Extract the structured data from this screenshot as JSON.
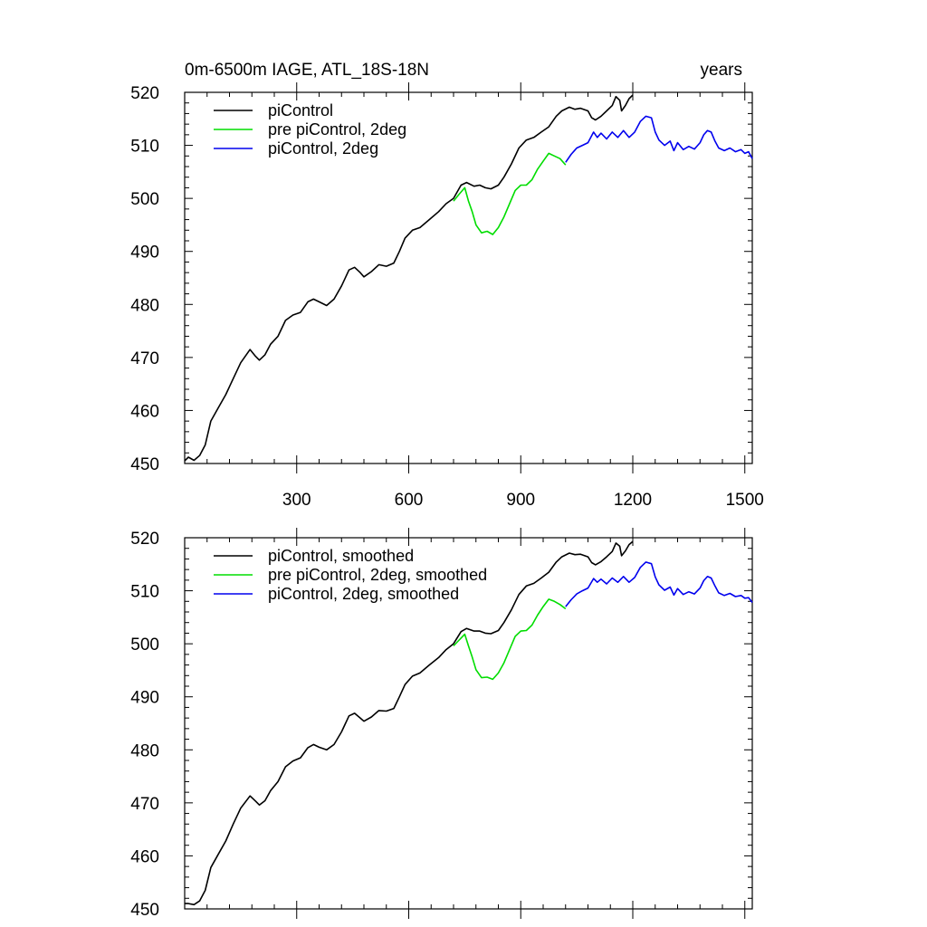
{
  "chart_data": [
    {
      "type": "line",
      "title": "0m-6500m IAGE, ATL_18S-18N",
      "units": "years",
      "xlim": [
        0,
        1520
      ],
      "ylim": [
        450,
        520
      ],
      "xticks": [
        300,
        600,
        900,
        1200,
        1500
      ],
      "xtick_labels": [
        "300",
        "600",
        "900",
        "1200",
        "1500"
      ],
      "yticks": [
        450,
        460,
        470,
        480,
        490,
        500,
        510,
        520
      ],
      "ytick_labels": [
        "450",
        "460",
        "470",
        "480",
        "490",
        "500",
        "510",
        "520"
      ],
      "legend_position": "top-left",
      "series": [
        {
          "name": "piControl",
          "color": "#000000",
          "x": [
            0,
            10,
            25,
            40,
            55,
            70,
            90,
            110,
            130,
            150,
            175,
            190,
            200,
            215,
            230,
            250,
            270,
            290,
            310,
            330,
            345,
            360,
            380,
            400,
            420,
            440,
            455,
            470,
            480,
            500,
            520,
            540,
            560,
            575,
            590,
            610,
            630,
            655,
            680,
            700,
            720,
            740,
            755,
            775,
            790,
            805,
            820,
            840,
            855,
            875,
            895,
            915,
            935,
            955,
            975,
            995,
            1010,
            1030,
            1045,
            1060,
            1080,
            1090,
            1100,
            1115,
            1130,
            1145,
            1155,
            1165,
            1170,
            1180,
            1190,
            1200
          ],
          "y": [
            450.5,
            451.2,
            450.6,
            451.5,
            453.5,
            458,
            460.5,
            463,
            466,
            469,
            471.5,
            470.2,
            469.5,
            470.5,
            472.5,
            474,
            477,
            478,
            478.5,
            480.5,
            481,
            480.5,
            479.8,
            481,
            483.5,
            486.5,
            487,
            486,
            485.2,
            486.2,
            487.5,
            487.2,
            487.8,
            490,
            492.5,
            494,
            494.5,
            496,
            497.5,
            499,
            500,
            502.5,
            503,
            502.3,
            502.5,
            502,
            501.8,
            502.5,
            504,
            506.5,
            509.5,
            511,
            511.5,
            512.5,
            513.5,
            515.5,
            516.5,
            517.2,
            516.8,
            517,
            516.5,
            515.2,
            514.8,
            515.5,
            516.5,
            517.5,
            519.2,
            518.5,
            516.5,
            517.5,
            518.8,
            519.5
          ]
        },
        {
          "name": "pre piControl, 2deg",
          "color": "#00dd00",
          "x": [
            720,
            735,
            750,
            760,
            770,
            780,
            795,
            810,
            825,
            840,
            855,
            870,
            885,
            900,
            915,
            930,
            945,
            960,
            975,
            990,
            1005,
            1020
          ],
          "y": [
            499.5,
            500.8,
            502,
            499.5,
            497.5,
            495,
            493.5,
            493.8,
            493.2,
            494.5,
            496.5,
            499,
            501.5,
            502.5,
            502.5,
            503.5,
            505.5,
            507,
            508.5,
            508,
            507.5,
            506.3
          ]
        },
        {
          "name": "piControl, 2deg",
          "color": "#0000ee",
          "x": [
            1020,
            1035,
            1050,
            1065,
            1080,
            1095,
            1105,
            1115,
            1130,
            1145,
            1160,
            1175,
            1190,
            1205,
            1220,
            1235,
            1250,
            1260,
            1270,
            1285,
            1300,
            1310,
            1320,
            1335,
            1350,
            1365,
            1380,
            1390,
            1400,
            1410,
            1420,
            1430,
            1445,
            1460,
            1475,
            1490,
            1500,
            1510,
            1520
          ],
          "y": [
            506.8,
            508.3,
            509.5,
            510,
            510.5,
            512.5,
            511.5,
            512.3,
            511.2,
            512.5,
            511.5,
            512.8,
            511.5,
            512.5,
            514.5,
            515.5,
            515.2,
            512.5,
            511,
            510,
            510.8,
            509,
            510.5,
            509.2,
            509.8,
            509.3,
            510.5,
            512,
            512.8,
            512.5,
            510.8,
            509.5,
            509,
            509.5,
            508.8,
            509.2,
            508.5,
            508.8,
            507.5
          ]
        }
      ]
    },
    {
      "type": "line",
      "xlim": [
        0,
        1520
      ],
      "ylim": [
        450,
        520
      ],
      "xticks": [
        300,
        600,
        900,
        1200,
        1500
      ],
      "yticks": [
        450,
        460,
        470,
        480,
        490,
        500,
        510,
        520
      ],
      "ytick_labels": [
        "450",
        "460",
        "470",
        "480",
        "490",
        "500",
        "510",
        "520"
      ],
      "legend_position": "top-left",
      "series": [
        {
          "name": "piControl, smoothed",
          "color": "#000000",
          "x": [
            0,
            10,
            25,
            40,
            55,
            70,
            90,
            110,
            130,
            150,
            175,
            190,
            200,
            215,
            230,
            250,
            270,
            290,
            310,
            330,
            345,
            360,
            380,
            400,
            420,
            440,
            455,
            470,
            480,
            500,
            520,
            540,
            560,
            575,
            590,
            610,
            630,
            655,
            680,
            700,
            720,
            740,
            755,
            775,
            790,
            805,
            820,
            840,
            855,
            875,
            895,
            915,
            935,
            955,
            975,
            995,
            1010,
            1030,
            1045,
            1060,
            1080,
            1090,
            1100,
            1115,
            1130,
            1145,
            1155,
            1165,
            1170,
            1180,
            1190,
            1200
          ],
          "y": [
            451,
            451,
            450.8,
            451.5,
            453.5,
            457.8,
            460.3,
            462.8,
            466,
            469,
            471.3,
            470.3,
            469.6,
            470.4,
            472.3,
            474,
            476.8,
            477.9,
            478.5,
            480.4,
            481,
            480.5,
            480,
            481,
            483.4,
            486.4,
            486.9,
            486,
            485.4,
            486.2,
            487.4,
            487.3,
            487.8,
            490,
            492.3,
            493.9,
            494.5,
            496,
            497.4,
            498.9,
            500,
            502.3,
            502.9,
            502.4,
            502.4,
            502,
            501.9,
            502.5,
            504,
            506.4,
            509.3,
            510.9,
            511.4,
            512.4,
            513.5,
            515.4,
            516.4,
            517.1,
            516.8,
            516.9,
            516.4,
            515.3,
            514.9,
            515.5,
            516.4,
            517.4,
            519,
            518.4,
            516.6,
            517.5,
            518.7,
            519.3
          ]
        },
        {
          "name": "pre piControl, 2deg, smoothed",
          "color": "#00dd00",
          "x": [
            720,
            735,
            750,
            760,
            770,
            780,
            795,
            810,
            825,
            840,
            855,
            870,
            885,
            900,
            915,
            930,
            945,
            960,
            975,
            990,
            1005,
            1020
          ],
          "y": [
            499.6,
            500.7,
            501.8,
            499.6,
            497.5,
            495.1,
            493.6,
            493.7,
            493.3,
            494.5,
            496.4,
            498.9,
            501.4,
            502.4,
            502.5,
            503.5,
            505.4,
            507,
            508.4,
            508,
            507.4,
            506.6
          ]
        },
        {
          "name": "piControl, 2deg, smoothed",
          "color": "#0000ee",
          "x": [
            1020,
            1035,
            1050,
            1065,
            1080,
            1095,
            1105,
            1115,
            1130,
            1145,
            1160,
            1175,
            1190,
            1205,
            1220,
            1235,
            1250,
            1260,
            1270,
            1285,
            1300,
            1310,
            1320,
            1335,
            1350,
            1365,
            1380,
            1390,
            1400,
            1410,
            1420,
            1430,
            1445,
            1460,
            1475,
            1490,
            1500,
            1510,
            1520
          ],
          "y": [
            507,
            508.3,
            509.4,
            510,
            510.5,
            512.3,
            511.6,
            512.2,
            511.3,
            512.4,
            511.6,
            512.7,
            511.6,
            512.5,
            514.4,
            515.4,
            515.1,
            512.6,
            511.1,
            510.1,
            510.7,
            509.2,
            510.4,
            509.3,
            509.8,
            509.4,
            510.5,
            511.9,
            512.7,
            512.4,
            510.9,
            509.6,
            509.1,
            509.5,
            508.9,
            509.1,
            508.6,
            508.7,
            507.8
          ]
        }
      ]
    }
  ]
}
